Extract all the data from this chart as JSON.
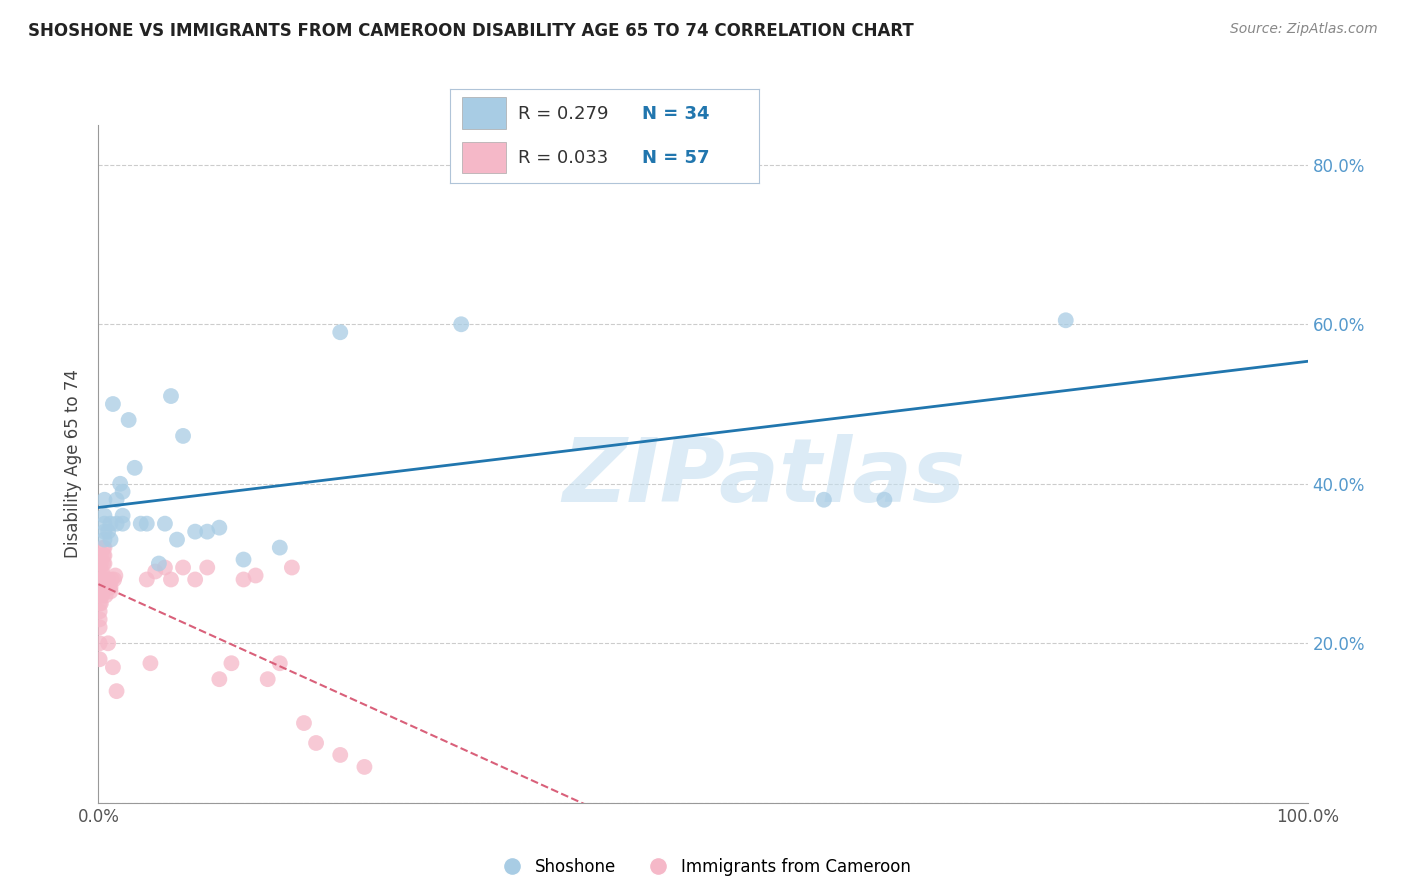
{
  "title": "SHOSHONE VS IMMIGRANTS FROM CAMEROON DISABILITY AGE 65 TO 74 CORRELATION CHART",
  "source": "Source: ZipAtlas.com",
  "ylabel": "Disability Age 65 to 74",
  "xlim": [
    0.0,
    1.0
  ],
  "ylim": [
    0.0,
    0.85
  ],
  "yticks": [
    0.0,
    0.2,
    0.4,
    0.6,
    0.8
  ],
  "xticks": [
    0.0,
    0.25,
    0.5,
    0.75,
    1.0
  ],
  "xtick_labels": [
    "0.0%",
    "",
    "",
    "",
    "100.0%"
  ],
  "ytick_labels_right": [
    "",
    "20.0%",
    "40.0%",
    "60.0%",
    "80.0%"
  ],
  "legend_entries": [
    {
      "label": "Shoshone",
      "R": "0.279",
      "N": "34",
      "color": "#a8cce4"
    },
    {
      "label": "Immigrants from Cameroon",
      "R": "0.033",
      "N": "57",
      "color": "#f5b8c8"
    }
  ],
  "shoshone_x": [
    0.005,
    0.005,
    0.005,
    0.005,
    0.005,
    0.008,
    0.01,
    0.01,
    0.012,
    0.015,
    0.015,
    0.018,
    0.02,
    0.02,
    0.02,
    0.025,
    0.03,
    0.035,
    0.04,
    0.05,
    0.055,
    0.06,
    0.065,
    0.07,
    0.08,
    0.09,
    0.1,
    0.12,
    0.15,
    0.2,
    0.3,
    0.6,
    0.65,
    0.8
  ],
  "shoshone_y": [
    0.34,
    0.33,
    0.35,
    0.36,
    0.38,
    0.34,
    0.35,
    0.33,
    0.5,
    0.35,
    0.38,
    0.4,
    0.39,
    0.36,
    0.35,
    0.48,
    0.42,
    0.35,
    0.35,
    0.3,
    0.35,
    0.51,
    0.33,
    0.46,
    0.34,
    0.34,
    0.345,
    0.305,
    0.32,
    0.59,
    0.6,
    0.38,
    0.38,
    0.605
  ],
  "cameroon_x": [
    0.001,
    0.001,
    0.001,
    0.001,
    0.001,
    0.001,
    0.001,
    0.001,
    0.002,
    0.002,
    0.002,
    0.002,
    0.002,
    0.002,
    0.002,
    0.003,
    0.003,
    0.003,
    0.003,
    0.004,
    0.004,
    0.004,
    0.005,
    0.005,
    0.005,
    0.006,
    0.006,
    0.007,
    0.008,
    0.008,
    0.009,
    0.01,
    0.01,
    0.011,
    0.012,
    0.013,
    0.014,
    0.015,
    0.04,
    0.043,
    0.047,
    0.055,
    0.06,
    0.07,
    0.08,
    0.09,
    0.1,
    0.11,
    0.12,
    0.13,
    0.14,
    0.15,
    0.16,
    0.17,
    0.18,
    0.2,
    0.22
  ],
  "cameroon_y": [
    0.27,
    0.26,
    0.25,
    0.24,
    0.23,
    0.22,
    0.2,
    0.18,
    0.31,
    0.3,
    0.29,
    0.28,
    0.27,
    0.26,
    0.25,
    0.29,
    0.28,
    0.27,
    0.26,
    0.32,
    0.31,
    0.3,
    0.32,
    0.31,
    0.3,
    0.28,
    0.26,
    0.27,
    0.28,
    0.2,
    0.27,
    0.27,
    0.265,
    0.28,
    0.17,
    0.28,
    0.285,
    0.14,
    0.28,
    0.175,
    0.29,
    0.295,
    0.28,
    0.295,
    0.28,
    0.295,
    0.155,
    0.175,
    0.28,
    0.285,
    0.155,
    0.175,
    0.295,
    0.1,
    0.075,
    0.06,
    0.045
  ],
  "shoshone_color": "#a8cce4",
  "cameroon_color": "#f5b8c8",
  "shoshone_line_color": "#2176ae",
  "cameroon_line_color": "#d9607a",
  "watermark_text": "ZIPatlas",
  "watermark_color": "#c5dff0",
  "background_color": "#ffffff",
  "grid_color": "#cccccc",
  "title_fontsize": 12,
  "source_fontsize": 10,
  "tick_fontsize": 12,
  "ylabel_fontsize": 12
}
